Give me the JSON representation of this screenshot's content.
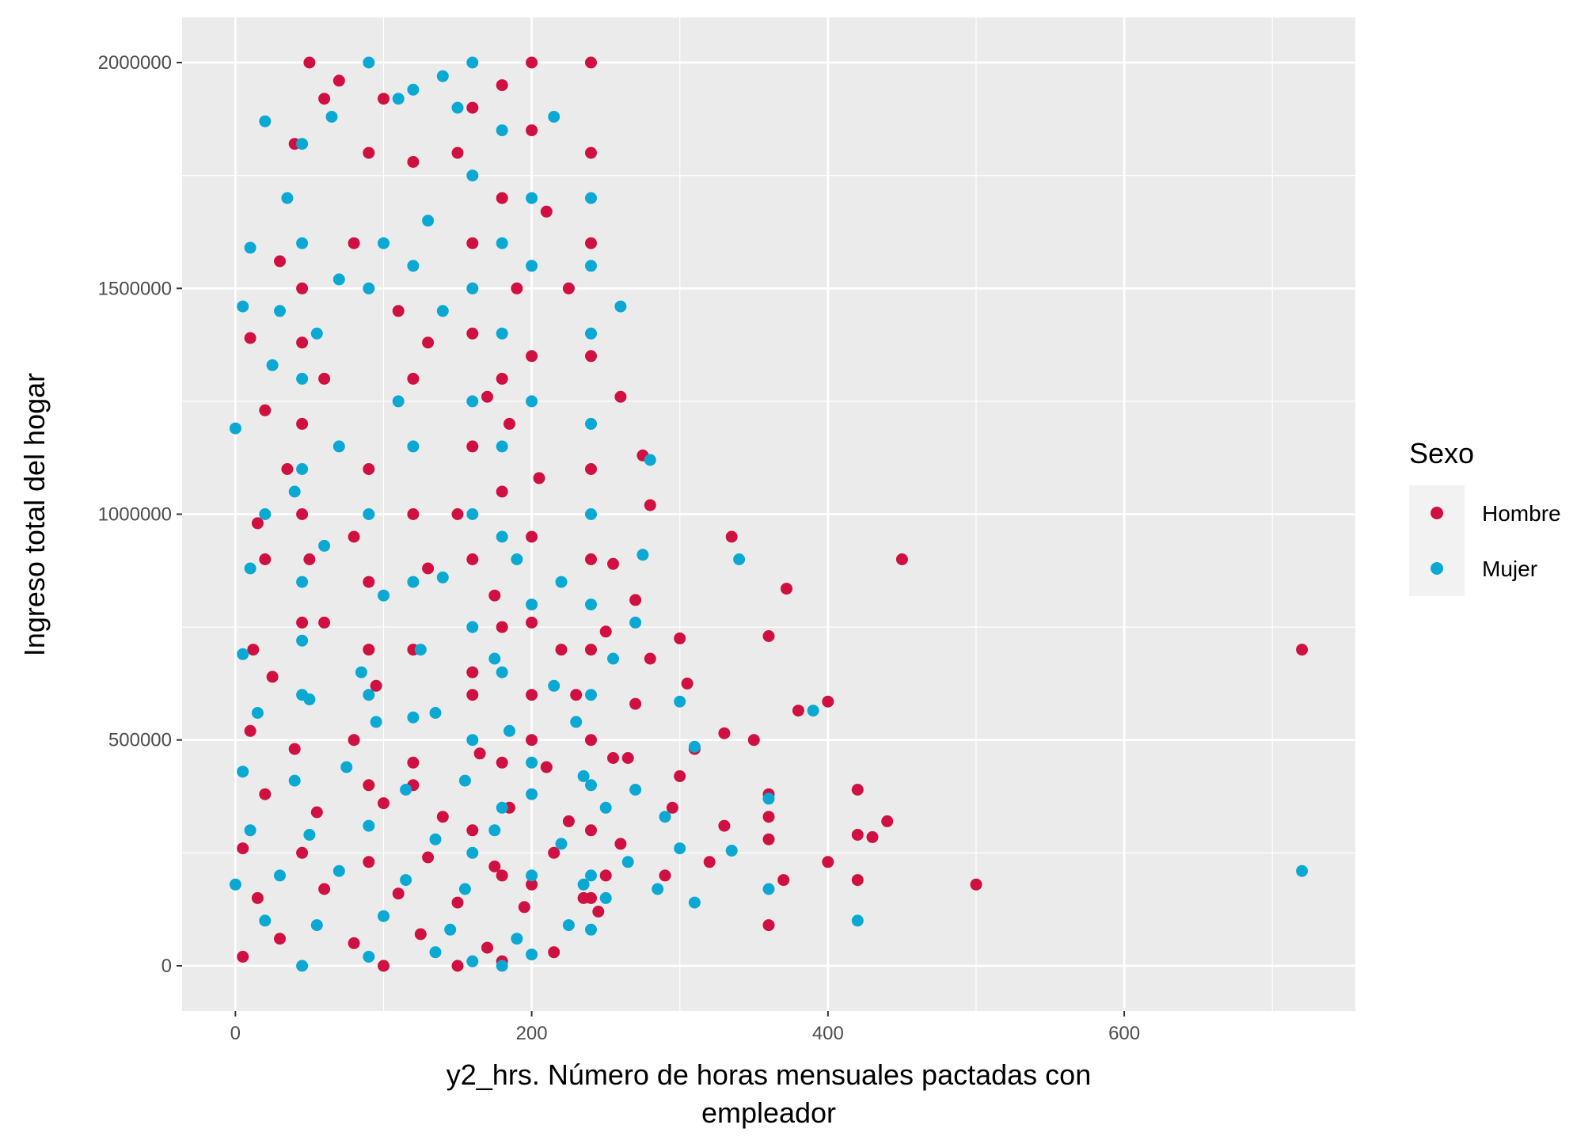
{
  "chart_data": {
    "type": "scatter",
    "xlabel_lines": [
      "y2_hrs. Número de horas mensuales pactadas con",
      "empleador"
    ],
    "ylabel": "Ingreso total del hogar",
    "xlim": [
      -36,
      756
    ],
    "ylim": [
      -100000,
      2100000
    ],
    "x_ticks": [
      0,
      200,
      400,
      600
    ],
    "x_tick_labels": [
      "0",
      "200",
      "400",
      "600"
    ],
    "y_ticks": [
      0,
      500000,
      1000000,
      1500000,
      2000000
    ],
    "y_tick_labels": [
      "0",
      "500000",
      "1000000",
      "1500000",
      "2000000"
    ],
    "grid": true,
    "legend": {
      "title": "Sexo",
      "placement": "right",
      "entries": [
        "Hombre",
        "Mujer"
      ]
    },
    "colors": {
      "panel": "#ebebeb",
      "grid": "#ffffff",
      "Hombre": "#d01040",
      "Mujer": "#0aa9d4"
    },
    "series": [
      {
        "name": "Hombre",
        "points": [
          [
            720,
            700000
          ],
          [
            450,
            900000
          ],
          [
            500,
            180000
          ],
          [
            400,
            585000
          ],
          [
            420,
            390000
          ],
          [
            420,
            290000
          ],
          [
            440,
            320000
          ],
          [
            430,
            285000
          ],
          [
            420,
            190000
          ],
          [
            400,
            230000
          ],
          [
            372,
            835000
          ],
          [
            360,
            730000
          ],
          [
            335,
            950000
          ],
          [
            350,
            500000
          ],
          [
            330,
            515000
          ],
          [
            380,
            565000
          ],
          [
            360,
            380000
          ],
          [
            360,
            330000
          ],
          [
            360,
            280000
          ],
          [
            370,
            190000
          ],
          [
            360,
            90000
          ],
          [
            330,
            310000
          ],
          [
            320,
            230000
          ],
          [
            300,
            725000
          ],
          [
            305,
            625000
          ],
          [
            310,
            480000
          ],
          [
            300,
            420000
          ],
          [
            295,
            350000
          ],
          [
            290,
            200000
          ],
          [
            280,
            1020000
          ],
          [
            275,
            1130000
          ],
          [
            270,
            810000
          ],
          [
            280,
            680000
          ],
          [
            270,
            580000
          ],
          [
            265,
            460000
          ],
          [
            260,
            1260000
          ],
          [
            255,
            890000
          ],
          [
            250,
            740000
          ],
          [
            255,
            460000
          ],
          [
            260,
            270000
          ],
          [
            250,
            200000
          ],
          [
            245,
            120000
          ],
          [
            240,
            2000000
          ],
          [
            240,
            1800000
          ],
          [
            240,
            1600000
          ],
          [
            240,
            1350000
          ],
          [
            240,
            1100000
          ],
          [
            240,
            900000
          ],
          [
            240,
            700000
          ],
          [
            240,
            500000
          ],
          [
            240,
            300000
          ],
          [
            240,
            150000
          ],
          [
            200,
            2000000
          ],
          [
            180,
            1950000
          ],
          [
            160,
            1900000
          ],
          [
            50,
            2000000
          ],
          [
            70,
            1960000
          ],
          [
            60,
            1920000
          ],
          [
            100,
            1920000
          ],
          [
            150,
            1000000
          ],
          [
            120,
            1780000
          ],
          [
            190,
            1500000
          ],
          [
            210,
            1670000
          ],
          [
            225,
            1500000
          ],
          [
            185,
            1200000
          ],
          [
            170,
            1260000
          ],
          [
            205,
            1080000
          ],
          [
            150,
            1800000
          ],
          [
            90,
            1800000
          ],
          [
            40,
            1820000
          ],
          [
            30,
            1560000
          ],
          [
            10,
            1390000
          ],
          [
            20,
            1230000
          ],
          [
            45,
            1500000
          ],
          [
            80,
            1600000
          ],
          [
            110,
            1450000
          ],
          [
            130,
            1380000
          ],
          [
            60,
            1300000
          ],
          [
            35,
            1100000
          ],
          [
            15,
            980000
          ],
          [
            50,
            900000
          ],
          [
            90,
            850000
          ],
          [
            130,
            880000
          ],
          [
            175,
            820000
          ],
          [
            200,
            760000
          ],
          [
            220,
            700000
          ],
          [
            60,
            760000
          ],
          [
            25,
            640000
          ],
          [
            95,
            620000
          ],
          [
            160,
            650000
          ],
          [
            200,
            600000
          ],
          [
            230,
            600000
          ],
          [
            10,
            520000
          ],
          [
            40,
            480000
          ],
          [
            80,
            500000
          ],
          [
            120,
            450000
          ],
          [
            165,
            470000
          ],
          [
            210,
            440000
          ],
          [
            20,
            380000
          ],
          [
            55,
            340000
          ],
          [
            100,
            360000
          ],
          [
            140,
            330000
          ],
          [
            185,
            350000
          ],
          [
            225,
            320000
          ],
          [
            5,
            260000
          ],
          [
            45,
            250000
          ],
          [
            90,
            230000
          ],
          [
            130,
            240000
          ],
          [
            175,
            220000
          ],
          [
            215,
            250000
          ],
          [
            15,
            150000
          ],
          [
            60,
            170000
          ],
          [
            110,
            160000
          ],
          [
            150,
            140000
          ],
          [
            195,
            130000
          ],
          [
            235,
            150000
          ],
          [
            30,
            60000
          ],
          [
            80,
            50000
          ],
          [
            125,
            70000
          ],
          [
            170,
            40000
          ],
          [
            215,
            30000
          ],
          [
            5,
            20000
          ],
          [
            100,
            0
          ],
          [
            150,
            0
          ],
          [
            180,
            10000
          ],
          [
            45,
            1380000
          ],
          [
            45,
            1200000
          ],
          [
            45,
            1000000
          ],
          [
            45,
            760000
          ],
          [
            160,
            1600000
          ],
          [
            160,
            1400000
          ],
          [
            160,
            1150000
          ],
          [
            160,
            900000
          ],
          [
            160,
            600000
          ],
          [
            160,
            300000
          ],
          [
            180,
            1700000
          ],
          [
            180,
            1300000
          ],
          [
            180,
            1050000
          ],
          [
            180,
            750000
          ],
          [
            180,
            450000
          ],
          [
            180,
            200000
          ],
          [
            200,
            1850000
          ],
          [
            200,
            1350000
          ],
          [
            200,
            950000
          ],
          [
            200,
            500000
          ],
          [
            200,
            180000
          ],
          [
            120,
            1300000
          ],
          [
            120,
            1000000
          ],
          [
            120,
            700000
          ],
          [
            120,
            400000
          ],
          [
            90,
            1100000
          ],
          [
            90,
            700000
          ],
          [
            90,
            400000
          ],
          [
            80,
            950000
          ],
          [
            20,
            900000
          ],
          [
            12,
            700000
          ]
        ]
      },
      {
        "name": "Mujer",
        "points": [
          [
            720,
            210000
          ],
          [
            420,
            100000
          ],
          [
            390,
            565000
          ],
          [
            340,
            900000
          ],
          [
            360,
            370000
          ],
          [
            360,
            170000
          ],
          [
            335,
            255000
          ],
          [
            310,
            485000
          ],
          [
            300,
            585000
          ],
          [
            310,
            140000
          ],
          [
            300,
            260000
          ],
          [
            290,
            330000
          ],
          [
            285,
            170000
          ],
          [
            280,
            1120000
          ],
          [
            275,
            910000
          ],
          [
            270,
            760000
          ],
          [
            270,
            390000
          ],
          [
            265,
            230000
          ],
          [
            260,
            1460000
          ],
          [
            255,
            680000
          ],
          [
            250,
            350000
          ],
          [
            250,
            150000
          ],
          [
            240,
            1700000
          ],
          [
            240,
            1550000
          ],
          [
            240,
            1400000
          ],
          [
            240,
            1200000
          ],
          [
            240,
            1000000
          ],
          [
            240,
            800000
          ],
          [
            240,
            600000
          ],
          [
            240,
            400000
          ],
          [
            240,
            200000
          ],
          [
            240,
            80000
          ],
          [
            90,
            2000000
          ],
          [
            140,
            1970000
          ],
          [
            120,
            1940000
          ],
          [
            110,
            1920000
          ],
          [
            215,
            1880000
          ],
          [
            180,
            1850000
          ],
          [
            160,
            2000000
          ],
          [
            160,
            1750000
          ],
          [
            160,
            1500000
          ],
          [
            160,
            1250000
          ],
          [
            160,
            1000000
          ],
          [
            160,
            750000
          ],
          [
            160,
            500000
          ],
          [
            160,
            250000
          ],
          [
            160,
            10000
          ],
          [
            20,
            1870000
          ],
          [
            35,
            1700000
          ],
          [
            10,
            1590000
          ],
          [
            5,
            1460000
          ],
          [
            0,
            1190000
          ],
          [
            25,
            1330000
          ],
          [
            55,
            1400000
          ],
          [
            70,
            1520000
          ],
          [
            100,
            1600000
          ],
          [
            130,
            1650000
          ],
          [
            200,
            1700000
          ],
          [
            140,
            1450000
          ],
          [
            110,
            1250000
          ],
          [
            70,
            1150000
          ],
          [
            40,
            1050000
          ],
          [
            10,
            880000
          ],
          [
            60,
            930000
          ],
          [
            100,
            820000
          ],
          [
            140,
            860000
          ],
          [
            190,
            900000
          ],
          [
            220,
            850000
          ],
          [
            5,
            690000
          ],
          [
            45,
            720000
          ],
          [
            85,
            650000
          ],
          [
            125,
            700000
          ],
          [
            175,
            680000
          ],
          [
            215,
            620000
          ],
          [
            15,
            560000
          ],
          [
            50,
            590000
          ],
          [
            95,
            540000
          ],
          [
            135,
            560000
          ],
          [
            185,
            520000
          ],
          [
            230,
            540000
          ],
          [
            5,
            430000
          ],
          [
            40,
            410000
          ],
          [
            75,
            440000
          ],
          [
            115,
            390000
          ],
          [
            155,
            410000
          ],
          [
            200,
            380000
          ],
          [
            235,
            420000
          ],
          [
            10,
            300000
          ],
          [
            50,
            290000
          ],
          [
            90,
            310000
          ],
          [
            135,
            280000
          ],
          [
            175,
            300000
          ],
          [
            220,
            270000
          ],
          [
            0,
            180000
          ],
          [
            30,
            200000
          ],
          [
            70,
            210000
          ],
          [
            115,
            190000
          ],
          [
            155,
            170000
          ],
          [
            200,
            200000
          ],
          [
            235,
            180000
          ],
          [
            20,
            100000
          ],
          [
            55,
            90000
          ],
          [
            100,
            110000
          ],
          [
            145,
            80000
          ],
          [
            190,
            60000
          ],
          [
            225,
            90000
          ],
          [
            45,
            0
          ],
          [
            90,
            20000
          ],
          [
            135,
            30000
          ],
          [
            180,
            0
          ],
          [
            200,
            25000
          ],
          [
            45,
            1820000
          ],
          [
            45,
            1600000
          ],
          [
            45,
            1300000
          ],
          [
            45,
            1100000
          ],
          [
            45,
            850000
          ],
          [
            45,
            600000
          ],
          [
            180,
            1600000
          ],
          [
            180,
            1400000
          ],
          [
            180,
            1150000
          ],
          [
            180,
            950000
          ],
          [
            180,
            650000
          ],
          [
            180,
            350000
          ],
          [
            200,
            1550000
          ],
          [
            200,
            1250000
          ],
          [
            200,
            800000
          ],
          [
            200,
            450000
          ],
          [
            120,
            1550000
          ],
          [
            120,
            1150000
          ],
          [
            120,
            850000
          ],
          [
            120,
            550000
          ],
          [
            90,
            1500000
          ],
          [
            90,
            1000000
          ],
          [
            90,
            600000
          ],
          [
            30,
            1450000
          ],
          [
            20,
            1000000
          ],
          [
            65,
            1880000
          ],
          [
            150,
            1900000
          ]
        ]
      }
    ]
  }
}
